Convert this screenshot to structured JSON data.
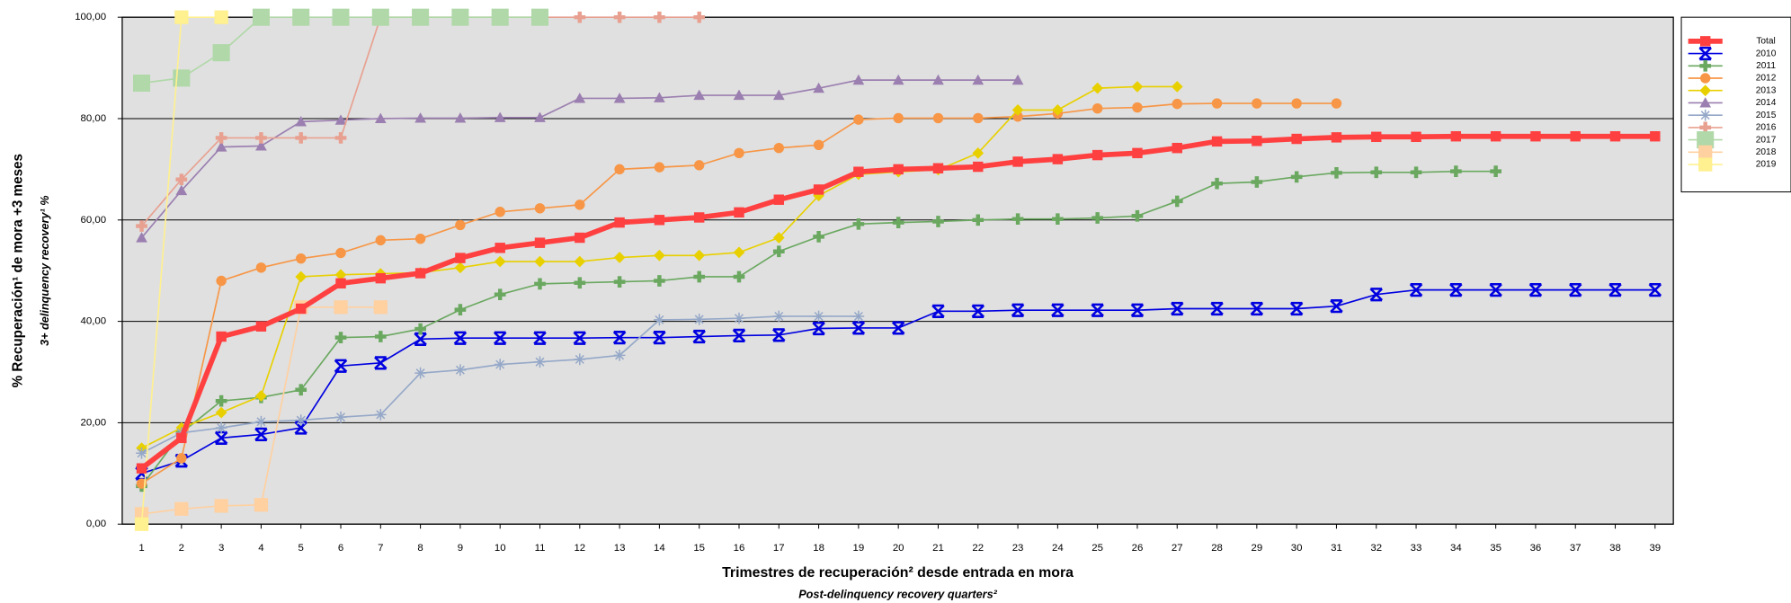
{
  "chart_data": {
    "type": "line",
    "y_title": "% Recuperación¹ de mora +3 meses",
    "y_subtitle": "3+ delinquency recovery¹ %",
    "x_title": "Trimestres de recuperación² desde entrada en mora",
    "x_subtitle": "Post-delinquency recovery quarters²",
    "categories": [
      1,
      2,
      3,
      4,
      5,
      6,
      7,
      8,
      9,
      10,
      11,
      12,
      13,
      14,
      15,
      16,
      17,
      18,
      19,
      20,
      21,
      22,
      23,
      24,
      25,
      26,
      27,
      28,
      29,
      30,
      31,
      32,
      33,
      34,
      35,
      36,
      37,
      38,
      39
    ],
    "ylim": [
      0,
      100
    ],
    "yticks": [
      {
        "value": 0,
        "label": "0,00"
      },
      {
        "value": 20,
        "label": "20,00"
      },
      {
        "value": 40,
        "label": "40,00"
      },
      {
        "value": 60,
        "label": "60,00"
      },
      {
        "value": 80,
        "label": "80,00"
      },
      {
        "value": 100,
        "label": "100,00"
      }
    ],
    "grid": true,
    "legend": "right",
    "series": [
      {
        "name": "Total",
        "color": "#ff4040",
        "marker": "square",
        "values": [
          11,
          17,
          37,
          39,
          42.5,
          47.5,
          48.5,
          49.5,
          52.5,
          54.5,
          55.5,
          56.5,
          59.5,
          60,
          60.5,
          61.5,
          64,
          66,
          69.5,
          70,
          70.2,
          70.5,
          71.5,
          72,
          72.8,
          73.2,
          74.2,
          75.5,
          75.6,
          76,
          76.3,
          76.4,
          76.4,
          76.5,
          76.5,
          76.5,
          76.5,
          76.5,
          76.5
        ]
      },
      {
        "name": "2010",
        "color": "#0000e0",
        "marker": "x",
        "values": [
          10,
          12.5,
          17,
          17.7,
          19,
          31.2,
          31.8,
          36.5,
          36.7,
          36.7,
          36.7,
          36.7,
          36.8,
          36.8,
          37,
          37.2,
          37.3,
          38.6,
          38.7,
          38.7,
          42,
          42,
          42.2,
          42.2,
          42.2,
          42.2,
          42.5,
          42.5,
          42.5,
          42.5,
          43,
          45.3,
          46.2,
          46.2,
          46.2,
          46.2,
          46.2,
          46.2,
          46.2
        ]
      },
      {
        "name": "2011",
        "color": "#6aa860",
        "marker": "plus",
        "values": [
          7.5,
          18,
          24.3,
          25,
          26.5,
          36.8,
          37,
          38.5,
          42.3,
          45.3,
          47.4,
          47.6,
          47.8,
          48,
          48.8,
          48.8,
          53.8,
          56.7,
          59.2,
          59.5,
          59.7,
          60,
          60.2,
          60.2,
          60.4,
          60.8,
          63.7,
          67.2,
          67.5,
          68.5,
          69.3,
          69.4,
          69.4,
          69.6,
          69.6,
          null,
          null,
          null,
          null
        ]
      },
      {
        "name": "2012",
        "color": "#f79646",
        "marker": "circle",
        "values": [
          8,
          13,
          48,
          50.6,
          52.4,
          53.5,
          56,
          56.3,
          59,
          61.6,
          62.3,
          63,
          70,
          70.4,
          70.8,
          73.2,
          74.2,
          74.8,
          79.8,
          80.1,
          80.1,
          80.1,
          80.4,
          81,
          82,
          82.2,
          82.9,
          83,
          83,
          83,
          83,
          null,
          null,
          null,
          null,
          null,
          null,
          null,
          null
        ]
      },
      {
        "name": "2013",
        "color": "#e8d000",
        "marker": "diamond",
        "values": [
          15,
          19,
          22,
          25.3,
          48.8,
          49.2,
          49.4,
          49.6,
          50.6,
          51.8,
          51.8,
          51.8,
          52.6,
          53,
          53,
          53.6,
          56.5,
          64.8,
          69,
          69.5,
          69.9,
          73.2,
          81.7,
          81.7,
          86,
          86.3,
          86.3,
          null,
          null,
          null,
          null,
          null,
          null,
          null,
          null,
          null,
          null,
          null,
          null
        ]
      },
      {
        "name": "2014",
        "color": "#9b7fb0",
        "marker": "triangle",
        "values": [
          56.5,
          65.8,
          74.4,
          74.6,
          79.4,
          79.7,
          80,
          80.1,
          80.1,
          80.2,
          80.2,
          84,
          84,
          84.1,
          84.6,
          84.6,
          84.6,
          86,
          87.6,
          87.6,
          87.6,
          87.6,
          87.6,
          null,
          null,
          null,
          null,
          null,
          null,
          null,
          null,
          null,
          null,
          null,
          null,
          null,
          null,
          null,
          null
        ]
      },
      {
        "name": "2015",
        "color": "#95a8c8",
        "marker": "star",
        "values": [
          14,
          18,
          19,
          20.2,
          20.5,
          21.1,
          21.6,
          29.8,
          30.4,
          31.5,
          32,
          32.5,
          33.3,
          40.3,
          40.4,
          40.6,
          41,
          41,
          41,
          null,
          null,
          null,
          null,
          null,
          null,
          null,
          null,
          null,
          null,
          null,
          null,
          null,
          null,
          null,
          null,
          null,
          null,
          null,
          null
        ]
      },
      {
        "name": "2016",
        "color": "#e8a090",
        "marker": "plus",
        "values": [
          58.8,
          68,
          76.2,
          76.2,
          76.2,
          76.2,
          100,
          100,
          100,
          100,
          100,
          100,
          100,
          100,
          100,
          null,
          null,
          null,
          null,
          null,
          null,
          null,
          null,
          null,
          null,
          null,
          null,
          null,
          null,
          null,
          null,
          null,
          null,
          null,
          null,
          null,
          null,
          null,
          null
        ]
      },
      {
        "name": "2017",
        "color": "#b0d8a8",
        "marker": "bigsquare",
        "values": [
          87,
          88,
          93,
          100,
          100,
          100,
          100,
          100,
          100,
          100,
          100,
          null,
          null,
          null,
          null,
          null,
          null,
          null,
          null,
          null,
          null,
          null,
          null,
          null,
          null,
          null,
          null,
          null,
          null,
          null,
          null,
          null,
          null,
          null,
          null,
          null,
          null,
          null,
          null
        ]
      },
      {
        "name": "2018",
        "color": "#ffd0a0",
        "marker": "midsquare",
        "values": [
          2,
          3,
          3.6,
          3.8,
          42.8,
          42.8,
          42.8,
          null,
          null,
          null,
          null,
          null,
          null,
          null,
          null,
          null,
          null,
          null,
          null,
          null,
          null,
          null,
          null,
          null,
          null,
          null,
          null,
          null,
          null,
          null,
          null,
          null,
          null,
          null,
          null,
          null,
          null,
          null,
          null
        ]
      },
      {
        "name": "2019",
        "color": "#fff090",
        "marker": "midsquare",
        "values": [
          0,
          100,
          100,
          null,
          null,
          null,
          null,
          null,
          null,
          null,
          null,
          null,
          null,
          null,
          null,
          null,
          null,
          null,
          null,
          null,
          null,
          null,
          null,
          null,
          null,
          null,
          null,
          null,
          null,
          null,
          null,
          null,
          null,
          null,
          null,
          null,
          null,
          null,
          null
        ]
      }
    ]
  }
}
